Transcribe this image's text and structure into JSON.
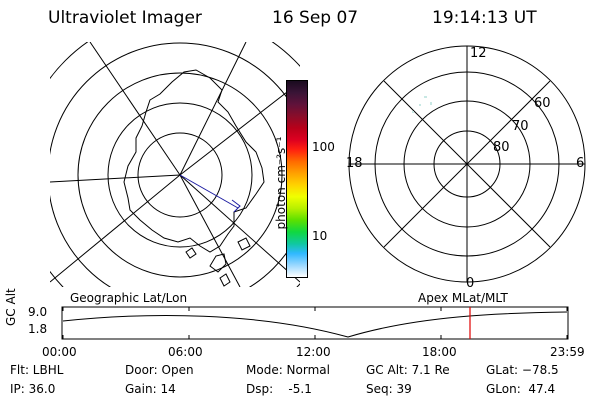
{
  "header": {
    "instrument": "Ultraviolet Imager",
    "date": "16 Sep 07",
    "time": "19:14:13 UT"
  },
  "colorbar": {
    "unit_label": "photon cm⁻²s⁻¹",
    "ticks": [
      "100",
      "10"
    ],
    "colors": [
      "#1a0b1f",
      "#3a1436",
      "#60123a",
      "#8a0d2a",
      "#b8001a",
      "#dd0020",
      "#ff2010",
      "#ff6a00",
      "#ffa000",
      "#ffd200",
      "#f0ff00",
      "#b8f000",
      "#5ce000",
      "#10d840",
      "#10c8a0",
      "#30b8ff",
      "#9ad8ff",
      "#ffffff"
    ]
  },
  "geo_map": {
    "label": "Geographic Lat/Lon"
  },
  "polar_plot": {
    "label": "Apex MLat/MLT",
    "hour_labels": [
      "12",
      "18",
      "6",
      "0"
    ],
    "lat_labels": [
      "60",
      "70",
      "80"
    ]
  },
  "timeline": {
    "ylabel": "GC Alt",
    "ytick_top": "9.0",
    "ytick_bottom": "1.8",
    "xticks": [
      "00:00",
      "06:00",
      "12:00",
      "18:00",
      "23:59"
    ],
    "marker_color": "#e00000"
  },
  "info": {
    "flt": "Flt: LBHL",
    "ip": "IP: 36.0",
    "door": "Door: Open",
    "gain": "Gain: 14",
    "mode": "Mode: Normal",
    "dsp": "Dsp:    -5.1",
    "gc_alt": "GC Alt: 7.1 Re",
    "seq": "Seq: 39",
    "glat": "GLat: −78.5",
    "glon": "GLon:  47.4"
  }
}
